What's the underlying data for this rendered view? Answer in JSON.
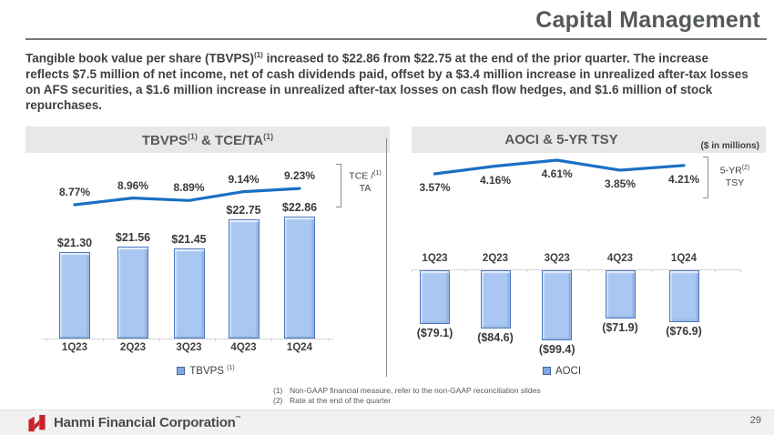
{
  "colors": {
    "accent_red": "#C8232C",
    "bar_fill": "#A9C7F2",
    "bar_border": "#4C79BE",
    "line_blue": "#1B6FC4",
    "banner_bg": "#E8E8E8",
    "title_gray": "#54585A"
  },
  "header": {
    "title": "Capital Management"
  },
  "intro": {
    "p1": "Tangible book value per share (TBVPS)",
    "sup": "(1)",
    "p2": " increased to $22.86 from $22.75 at the end of the prior quarter. The increase reflects $7.5 million of net income, net of cash dividends paid, offset by a $3.4 million increase in unrealized after-tax losses on AFS securities, a $1.6 million increase in unrealized after-tax losses on cash flow hedges, and $1.6 million of stock repurchases."
  },
  "chart_data": [
    {
      "type": "bar+line",
      "title": "TBVPS & TCE/TA",
      "banner": {
        "p1": "TBVPS",
        "s1": "(1)",
        "p2": " & TCE/TA",
        "s2": "(1)"
      },
      "categories": [
        "1Q23",
        "2Q23",
        "3Q23",
        "4Q23",
        "1Q24"
      ],
      "series": [
        {
          "name": "TBVPS",
          "kind": "bar",
          "values": [
            21.3,
            21.56,
            21.45,
            22.75,
            22.86
          ],
          "labels": [
            "$21.30",
            "$21.56",
            "$21.45",
            "$22.75",
            "$22.86"
          ]
        },
        {
          "name": "TCE/TA",
          "kind": "line",
          "values": [
            8.77,
            8.96,
            8.89,
            9.14,
            9.23
          ],
          "labels": [
            "8.77%",
            "8.96%",
            "8.89%",
            "9.14%",
            "9.23%"
          ]
        }
      ],
      "bar_ylim": [
        17.5,
        23.5
      ],
      "line_ylim": [
        8.4,
        9.6
      ],
      "legend": {
        "label": "TBVPS",
        "sup": "(1)"
      },
      "right_axis_label": {
        "l1": "TCE /",
        "s1": "(1)",
        "l2": "TA"
      },
      "grid": false,
      "legend_position": "bottom-center"
    },
    {
      "type": "bar+line",
      "title": "AOCI & 5-YR TSY",
      "subtitle": "($ in millions)",
      "categories": [
        "1Q23",
        "2Q23",
        "3Q23",
        "4Q23",
        "1Q24"
      ],
      "series": [
        {
          "name": "AOCI",
          "kind": "bar",
          "values": [
            -79.1,
            -84.6,
            -99.4,
            -71.9,
            -76.9
          ],
          "labels": [
            "($79.1)",
            "($84.6)",
            "($99.4)",
            "($71.9)",
            "($76.9)"
          ]
        },
        {
          "name": "5-YR TSY",
          "kind": "line",
          "values": [
            3.57,
            4.16,
            4.61,
            3.85,
            4.21
          ],
          "labels": [
            "3.57%",
            "4.16%",
            "4.61%",
            "3.85%",
            "4.21%"
          ]
        }
      ],
      "bar_ylim": [
        -110,
        0
      ],
      "line_ylim": [
        3.3,
        4.9
      ],
      "legend": {
        "label": "AOCI"
      },
      "right_axis_label": {
        "l1": "5-YR",
        "s1": "(2)",
        "l2": "TSY"
      },
      "grid": false,
      "legend_position": "bottom-center"
    }
  ],
  "footnotes": [
    {
      "num": "(1)",
      "text": "Non-GAAP financial measure, refer to the non-GAAP reconciliation slides"
    },
    {
      "num": "(2)",
      "text": "Rate at the end of the quarter"
    }
  ],
  "footer": {
    "company": "Hanmi Financial Corporation",
    "trademark": "™",
    "page": "29"
  }
}
